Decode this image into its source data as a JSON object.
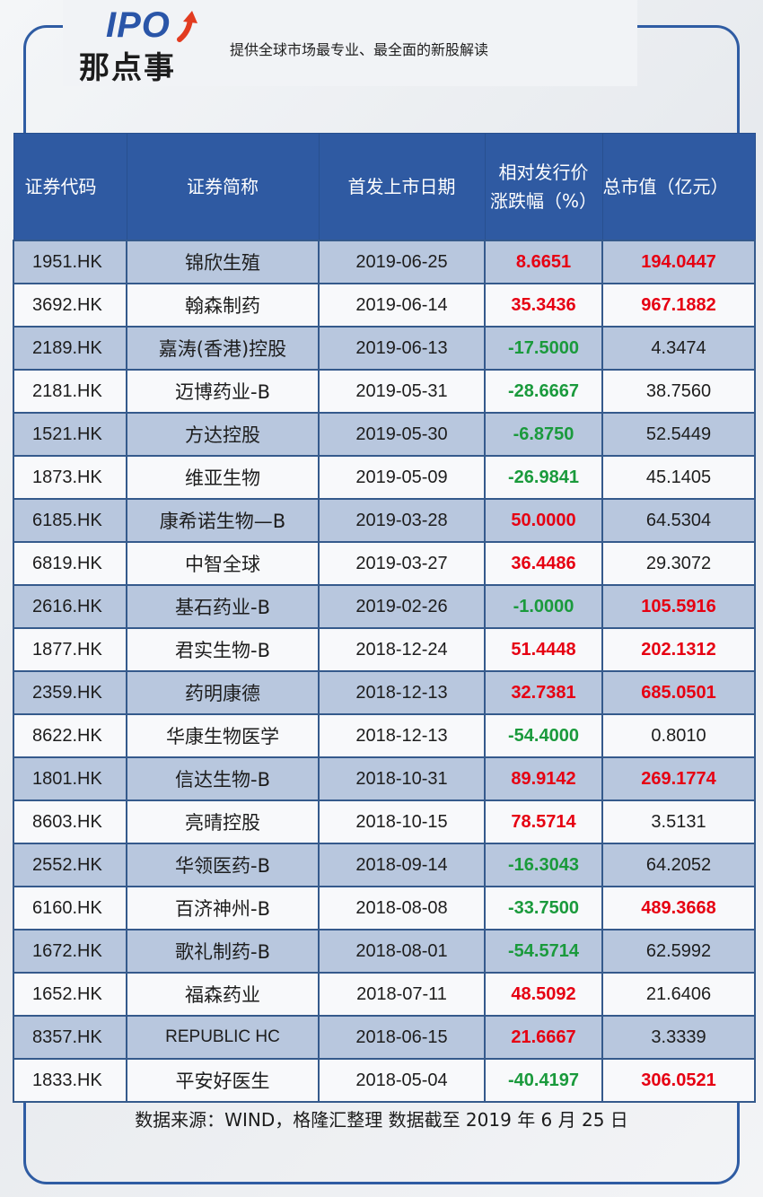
{
  "header": {
    "logo_ipo": "IPO",
    "logo_cn": "那点事",
    "slogan": "提供全球市场最专业、最全面的新股解读"
  },
  "colors": {
    "header_blue": "#2f5aa2",
    "band_row": "#b8c7de",
    "positive": "#e60012",
    "negative": "#1a9a3c",
    "frame_border": "#2f5ca3"
  },
  "table": {
    "columns": [
      "证券代码",
      "证券简称",
      "首发上市日期",
      "相对发行价",
      "涨跌幅（%）",
      "总市值（亿元）"
    ],
    "rows": [
      {
        "code": "1951.HK",
        "name": "锦欣生殖",
        "date": "2019-06-25",
        "change": "8.6651",
        "market_cap": "194.0447"
      },
      {
        "code": "3692.HK",
        "name": "翰森制药",
        "date": "2019-06-14",
        "change": "35.3436",
        "market_cap": "967.1882"
      },
      {
        "code": "2189.HK",
        "name": "嘉涛(香港)控股",
        "date": "2019-06-13",
        "change": "-17.5000",
        "market_cap": "4.3474"
      },
      {
        "code": "2181.HK",
        "name": "迈博药业-B",
        "date": "2019-05-31",
        "change": "-28.6667",
        "market_cap": "38.7560"
      },
      {
        "code": "1521.HK",
        "name": "方达控股",
        "date": "2019-05-30",
        "change": "-6.8750",
        "market_cap": "52.5449"
      },
      {
        "code": "1873.HK",
        "name": "维亚生物",
        "date": "2019-05-09",
        "change": "-26.9841",
        "market_cap": "45.1405"
      },
      {
        "code": "6185.HK",
        "name": "康希诺生物—B",
        "date": "2019-03-28",
        "change": "50.0000",
        "market_cap": "64.5304"
      },
      {
        "code": "6819.HK",
        "name": "中智全球",
        "date": "2019-03-27",
        "change": "36.4486",
        "market_cap": "29.3072"
      },
      {
        "code": "2616.HK",
        "name": "基石药业-B",
        "date": "2019-02-26",
        "change": "-1.0000",
        "market_cap": "105.5916"
      },
      {
        "code": "1877.HK",
        "name": "君实生物-B",
        "date": "2018-12-24",
        "change": "51.4448",
        "market_cap": "202.1312"
      },
      {
        "code": "2359.HK",
        "name": "药明康德",
        "date": "2018-12-13",
        "change": "32.7381",
        "market_cap": "685.0501"
      },
      {
        "code": "8622.HK",
        "name": "华康生物医学",
        "date": "2018-12-13",
        "change": "-54.4000",
        "market_cap": "0.8010"
      },
      {
        "code": "1801.HK",
        "name": "信达生物-B",
        "date": "2018-10-31",
        "change": "89.9142",
        "market_cap": "269.1774"
      },
      {
        "code": "8603.HK",
        "name": "亮晴控股",
        "date": "2018-10-15",
        "change": "78.5714",
        "market_cap": "3.5131"
      },
      {
        "code": "2552.HK",
        "name": "华领医药-B",
        "date": "2018-09-14",
        "change": "-16.3043",
        "market_cap": "64.2052"
      },
      {
        "code": "6160.HK",
        "name": "百济神州-B",
        "date": "2018-08-08",
        "change": "-33.7500",
        "market_cap": "489.3668"
      },
      {
        "code": "1672.HK",
        "name": "歌礼制药-B",
        "date": "2018-08-01",
        "change": "-54.5714",
        "market_cap": "62.5992"
      },
      {
        "code": "1652.HK",
        "name": "福森药业",
        "date": "2018-07-11",
        "change": "48.5092",
        "market_cap": "21.6406"
      },
      {
        "code": "8357.HK",
        "name": "REPUBLIC HC",
        "date": "2018-06-15",
        "change": "21.6667",
        "market_cap": "3.3339"
      },
      {
        "code": "1833.HK",
        "name": "平安好医生",
        "date": "2018-05-04",
        "change": "-40.4197",
        "market_cap": "306.0521"
      }
    ]
  },
  "footer": {
    "source": "数据来源：WIND，格隆汇整理 数据截至 2019 年 6 月 25 日"
  }
}
